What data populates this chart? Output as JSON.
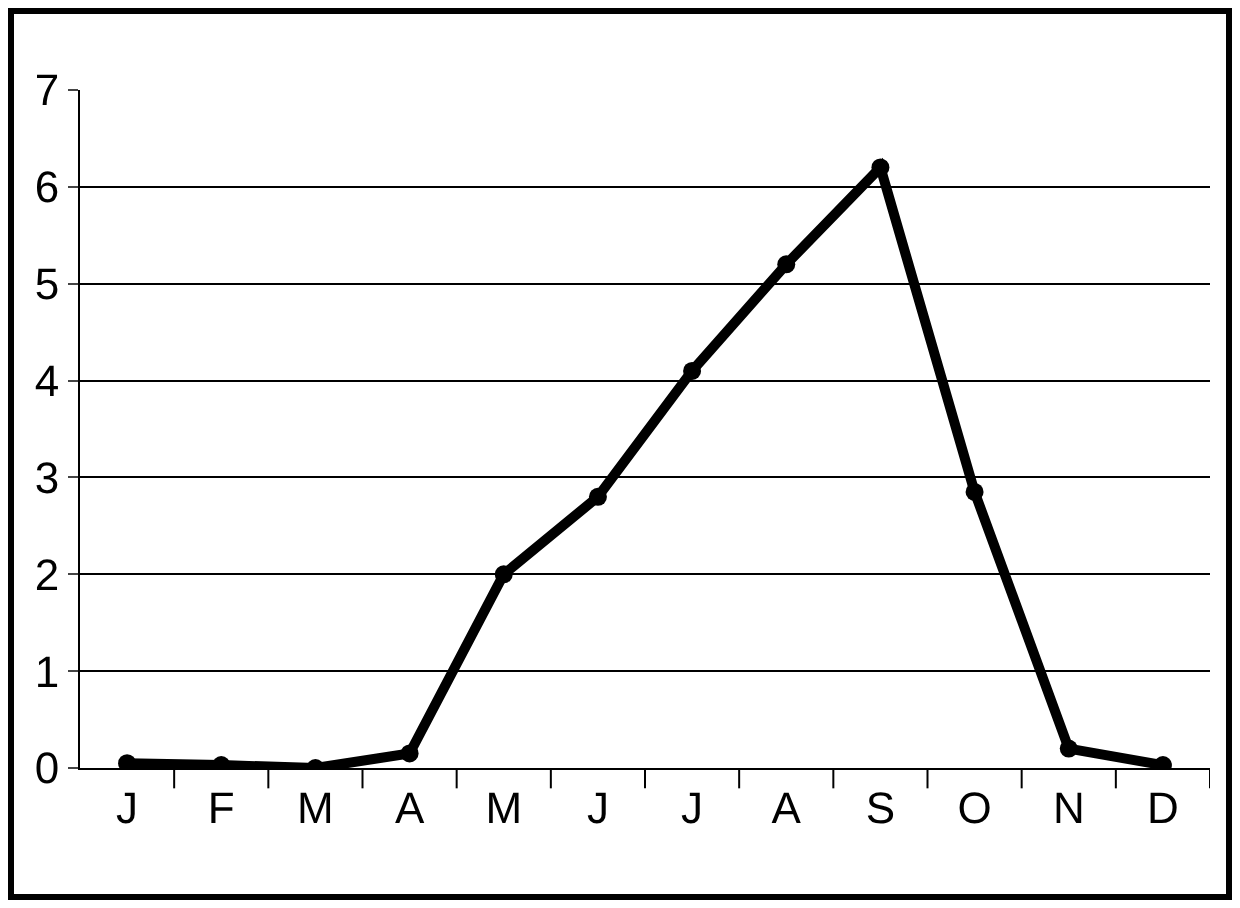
{
  "chart_data": {
    "type": "line",
    "categories": [
      "J",
      "F",
      "M",
      "A",
      "M",
      "J",
      "J",
      "A",
      "S",
      "O",
      "N",
      "D"
    ],
    "series": [
      {
        "color": "#000000",
        "values": [
          0.05,
          0.03,
          0,
          0.15,
          2.0,
          2.8,
          4.1,
          5.2,
          6.2,
          2.85,
          0.2,
          0.03
        ]
      }
    ],
    "ylim": [
      0,
      7
    ],
    "yticks": [
      0,
      1,
      2,
      3,
      4,
      5,
      6,
      7
    ],
    "grid": "y",
    "legend": false,
    "marker": "circle",
    "line_style": "solid"
  }
}
